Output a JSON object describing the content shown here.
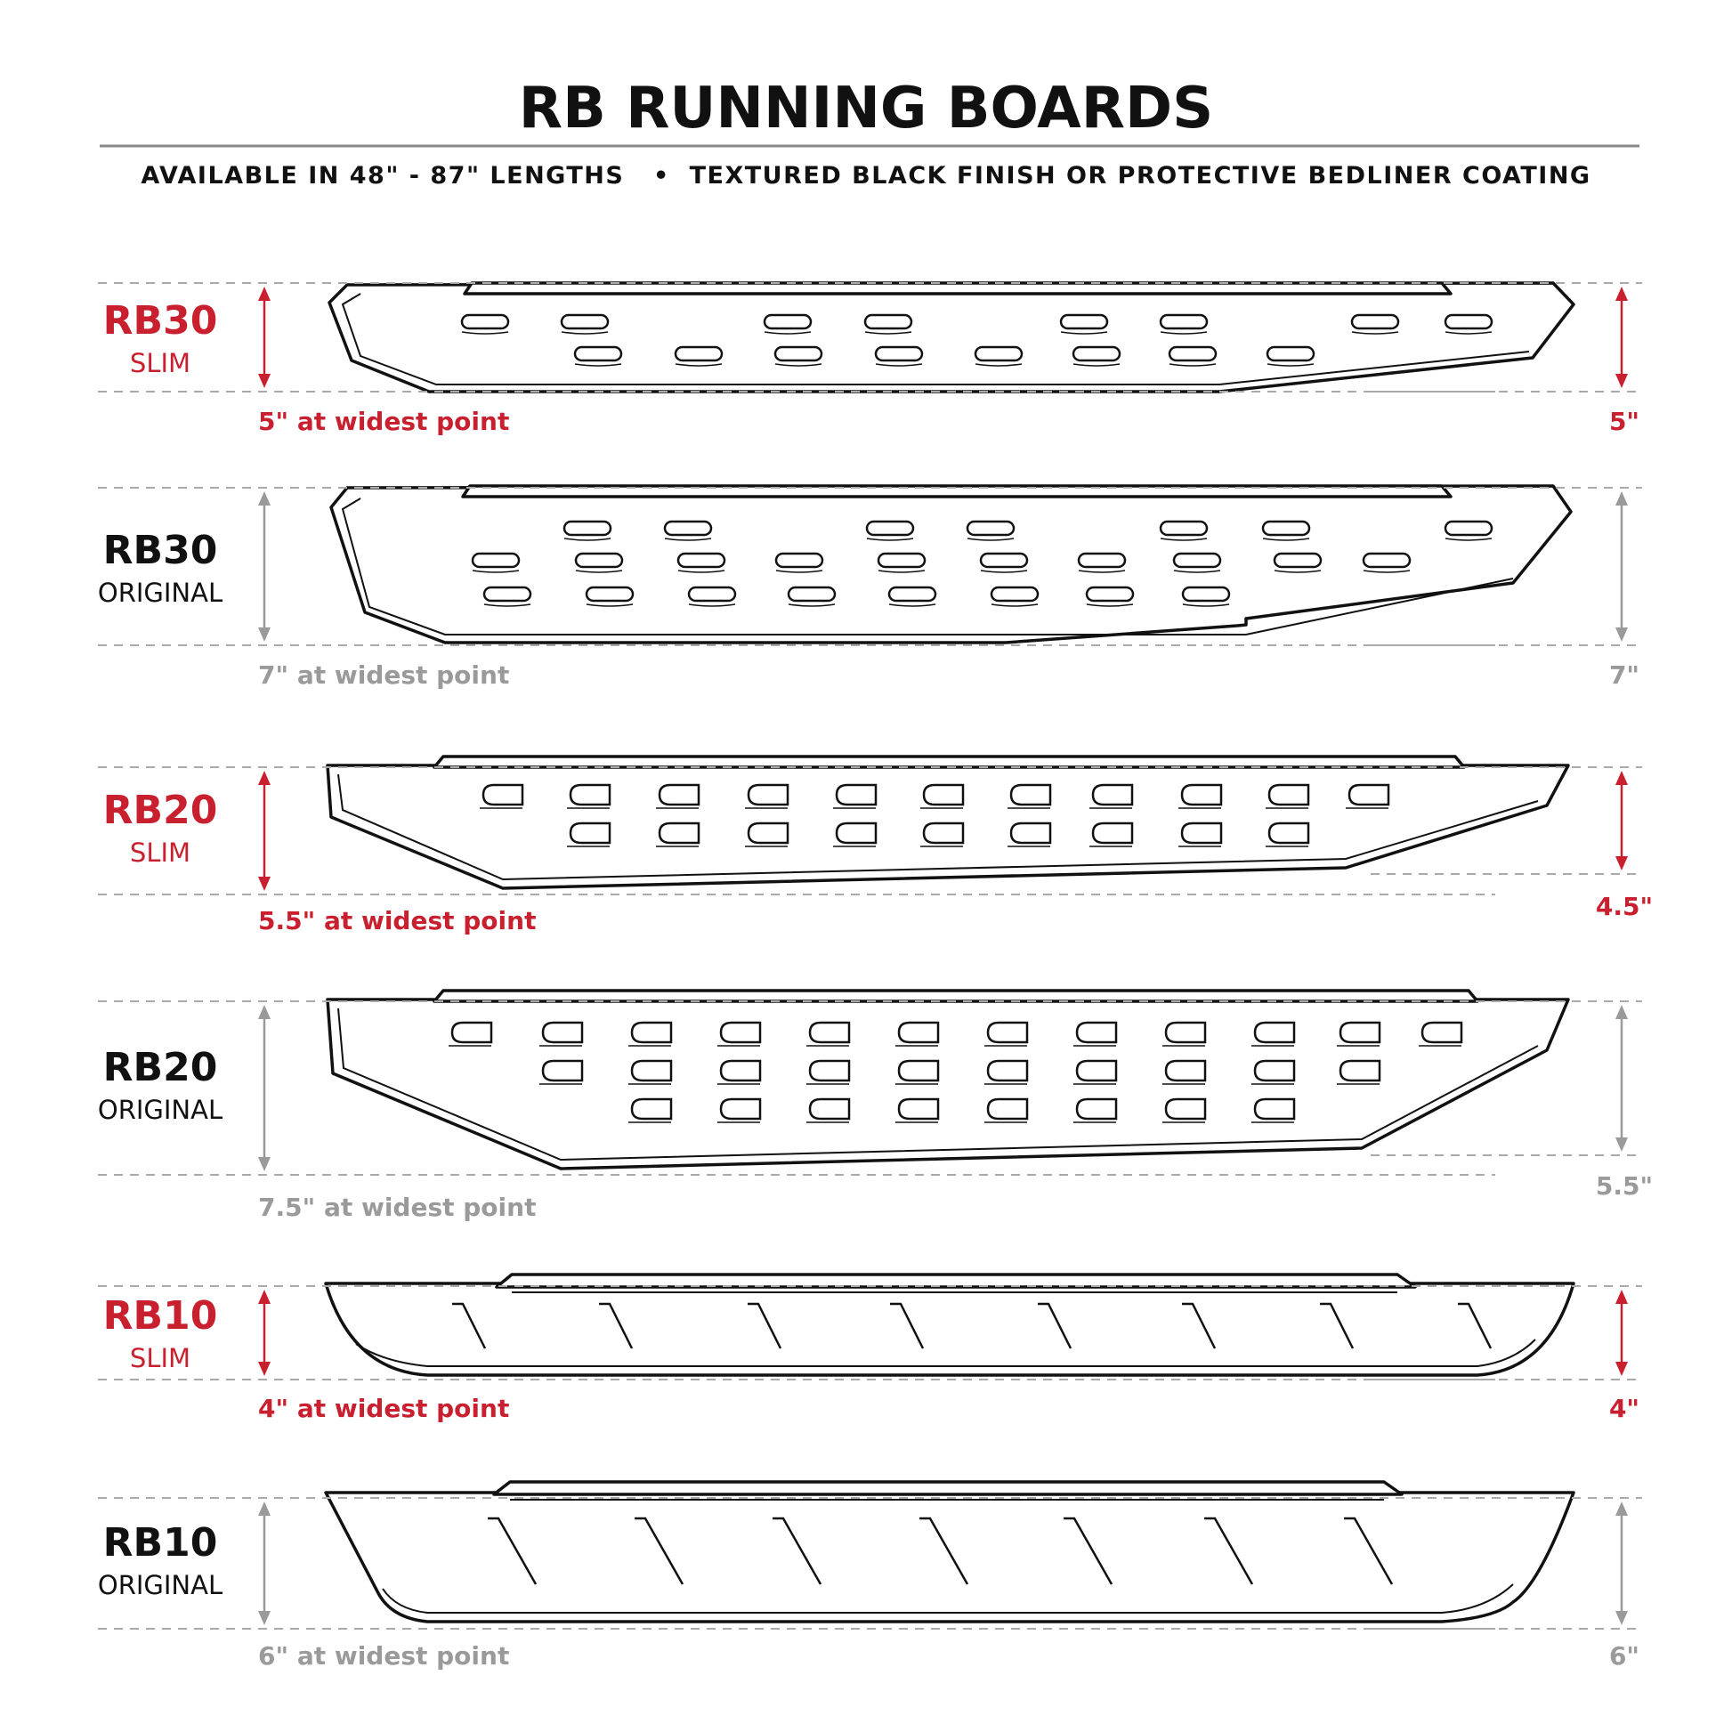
{
  "header": {
    "title": "RB RUNNING BOARDS",
    "subtitle": "AVAILABLE IN 48\" - 87\" LENGTHS   •  TEXTURED BLACK FINISH OR PROTECTIVE BEDLINER COATING"
  },
  "colors": {
    "accent": "#c8202f",
    "muted": "#9a9a9a",
    "ink": "#111111"
  },
  "boards": [
    {
      "name": "RB30",
      "variant": "SLIM",
      "width_label": "5\" at widest point",
      "right_label": "5\"",
      "highlight": true
    },
    {
      "name": "RB30",
      "variant": "ORIGINAL",
      "width_label": "7\" at widest point",
      "right_label": "7\"",
      "highlight": false
    },
    {
      "name": "RB20",
      "variant": "SLIM",
      "width_label": "5.5\" at widest point",
      "right_label": "4.5\"",
      "highlight": true
    },
    {
      "name": "RB20",
      "variant": "ORIGINAL",
      "width_label": "7.5\" at widest point",
      "right_label": "5.5\"",
      "highlight": false
    },
    {
      "name": "RB10",
      "variant": "SLIM",
      "width_label": "4\" at widest point",
      "right_label": "4\"",
      "highlight": true
    },
    {
      "name": "RB10",
      "variant": "ORIGINAL",
      "width_label": "6\" at widest point",
      "right_label": "6\"",
      "highlight": false
    }
  ]
}
